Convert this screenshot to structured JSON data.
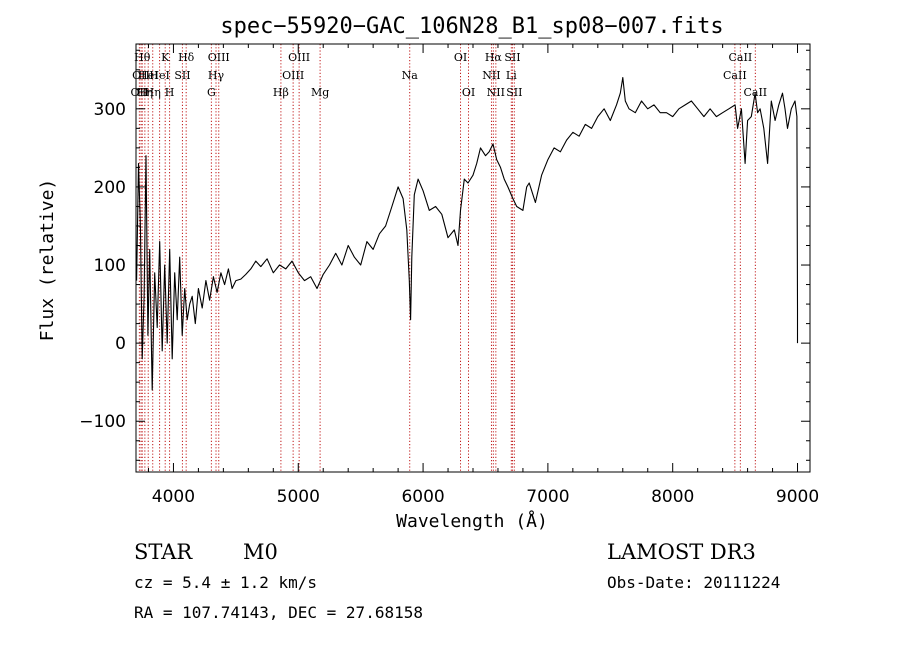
{
  "chart_data": {
    "type": "line",
    "title": "spec−55920−GAC_106N28_B1_sp08−007.fits",
    "xlabel": "Wavelength (Å)",
    "ylabel": "Flux (relative)",
    "xlim": [
      3700,
      9100
    ],
    "ylim": [
      -165,
      383
    ],
    "xticks": [
      4000,
      5000,
      6000,
      7000,
      8000,
      9000
    ],
    "xtick_labels": [
      "4000",
      "5000",
      "6000",
      "7000",
      "8000",
      "9000"
    ],
    "yticks": [
      -100,
      0,
      100,
      200,
      300
    ],
    "ytick_labels": [
      "−100",
      "0",
      "100",
      "200",
      "300"
    ],
    "series": [
      {
        "name": "spectrum",
        "x": [
          3705,
          3720,
          3735,
          3750,
          3765,
          3780,
          3795,
          3810,
          3830,
          3850,
          3870,
          3890,
          3910,
          3930,
          3950,
          3970,
          3990,
          4010,
          4030,
          4050,
          4070,
          4090,
          4110,
          4130,
          4150,
          4175,
          4200,
          4230,
          4260,
          4290,
          4320,
          4350,
          4380,
          4410,
          4440,
          4470,
          4500,
          4540,
          4580,
          4620,
          4660,
          4700,
          4750,
          4800,
          4850,
          4900,
          4950,
          5000,
          5050,
          5100,
          5150,
          5200,
          5250,
          5300,
          5350,
          5400,
          5450,
          5500,
          5550,
          5600,
          5650,
          5700,
          5750,
          5800,
          5840,
          5870,
          5890,
          5900,
          5910,
          5930,
          5960,
          6000,
          6050,
          6100,
          6150,
          6200,
          6250,
          6280,
          6300,
          6330,
          6360,
          6400,
          6430,
          6460,
          6500,
          6530,
          6560,
          6590,
          6620,
          6650,
          6680,
          6720,
          6750,
          6800,
          6830,
          6850,
          6870,
          6900,
          6950,
          7000,
          7050,
          7100,
          7150,
          7200,
          7250,
          7300,
          7350,
          7400,
          7450,
          7500,
          7550,
          7580,
          7600,
          7620,
          7650,
          7700,
          7750,
          7800,
          7850,
          7900,
          7950,
          8000,
          8050,
          8100,
          8150,
          8200,
          8250,
          8300,
          8350,
          8400,
          8450,
          8500,
          8520,
          8550,
          8580,
          8600,
          8630,
          8660,
          8680,
          8700,
          8730,
          8760,
          8790,
          8820,
          8850,
          8880,
          8900,
          8920,
          8950,
          8980,
          8995,
          9000,
          9000
        ],
        "values": [
          80,
          230,
          150,
          -20,
          60,
          240,
          10,
          120,
          -60,
          90,
          20,
          130,
          -10,
          100,
          0,
          120,
          -20,
          90,
          30,
          110,
          10,
          70,
          30,
          50,
          60,
          25,
          70,
          45,
          80,
          55,
          85,
          65,
          90,
          75,
          95,
          70,
          80,
          82,
          88,
          95,
          105,
          98,
          108,
          90,
          100,
          95,
          105,
          90,
          80,
          85,
          70,
          88,
          100,
          115,
          100,
          125,
          110,
          100,
          130,
          120,
          140,
          150,
          175,
          200,
          185,
          145,
          80,
          30,
          110,
          190,
          210,
          195,
          170,
          175,
          165,
          135,
          145,
          125,
          170,
          210,
          205,
          215,
          230,
          250,
          240,
          245,
          255,
          235,
          225,
          210,
          200,
          185,
          175,
          170,
          200,
          205,
          195,
          180,
          215,
          235,
          250,
          245,
          260,
          270,
          265,
          280,
          275,
          290,
          300,
          285,
          305,
          320,
          340,
          310,
          300,
          295,
          310,
          300,
          305,
          295,
          295,
          290,
          300,
          305,
          310,
          300,
          290,
          300,
          290,
          295,
          300,
          305,
          275,
          300,
          230,
          285,
          290,
          320,
          295,
          300,
          275,
          230,
          310,
          285,
          305,
          320,
          300,
          275,
          300,
          310,
          290,
          45,
          0
        ]
      }
    ],
    "lines": [
      {
        "x": 3727,
        "label": "OII",
        "row": 2
      },
      {
        "x": 3740,
        "label": "OII",
        "row": 1
      },
      {
        "x": 3750,
        "label": "Hθ",
        "row": 0
      },
      {
        "x": 3771,
        "label": "Hη",
        "row": 2
      },
      {
        "x": 3798,
        "label": "HeI",
        "row": 1
      },
      {
        "x": 3834,
        "label": "Hη",
        "row": 2
      },
      {
        "x": 3889,
        "label": "HeI",
        "row": 1
      },
      {
        "x": 3934,
        "label": "K",
        "row": 0
      },
      {
        "x": 3969,
        "label": "H",
        "row": 2
      },
      {
        "x": 4072,
        "label": "SII",
        "row": 1
      },
      {
        "x": 4102,
        "label": "Hδ",
        "row": 0
      },
      {
        "x": 4304,
        "label": "G",
        "row": 2
      },
      {
        "x": 4341,
        "label": "Hγ",
        "row": 1
      },
      {
        "x": 4363,
        "label": "OIII",
        "row": 0
      },
      {
        "x": 4861,
        "label": "Hβ",
        "row": 2
      },
      {
        "x": 4959,
        "label": "OIII",
        "row": 1
      },
      {
        "x": 5007,
        "label": "OIII",
        "row": 0
      },
      {
        "x": 5175,
        "label": "Mg",
        "row": 2
      },
      {
        "x": 5893,
        "label": "Na",
        "row": 1
      },
      {
        "x": 6300,
        "label": "OI",
        "row": 0
      },
      {
        "x": 6364,
        "label": "OI",
        "row": 2
      },
      {
        "x": 6548,
        "label": "NII",
        "row": 1
      },
      {
        "x": 6563,
        "label": "Hα",
        "row": 0
      },
      {
        "x": 6583,
        "label": "NII",
        "row": 2
      },
      {
        "x": 6707,
        "label": "Li",
        "row": 1
      },
      {
        "x": 6716,
        "label": "SII",
        "row": 0
      },
      {
        "x": 6731,
        "label": "SII",
        "row": 2
      },
      {
        "x": 8498,
        "label": "CaII",
        "row": 1
      },
      {
        "x": 8542,
        "label": "CaII",
        "row": 0
      },
      {
        "x": 8662,
        "label": "CaII",
        "row": 2
      }
    ]
  },
  "info": {
    "class": "STAR",
    "subclass": "M0",
    "cz": "cz = 5.4 ± 1.2 km/s",
    "coords": "RA = 107.74143, DEC =  27.68158",
    "survey": "LAMOST DR3",
    "obs_date": "Obs-Date: 20111224"
  },
  "colors": {
    "line_markers": "#c01818",
    "trace": "#000000"
  }
}
